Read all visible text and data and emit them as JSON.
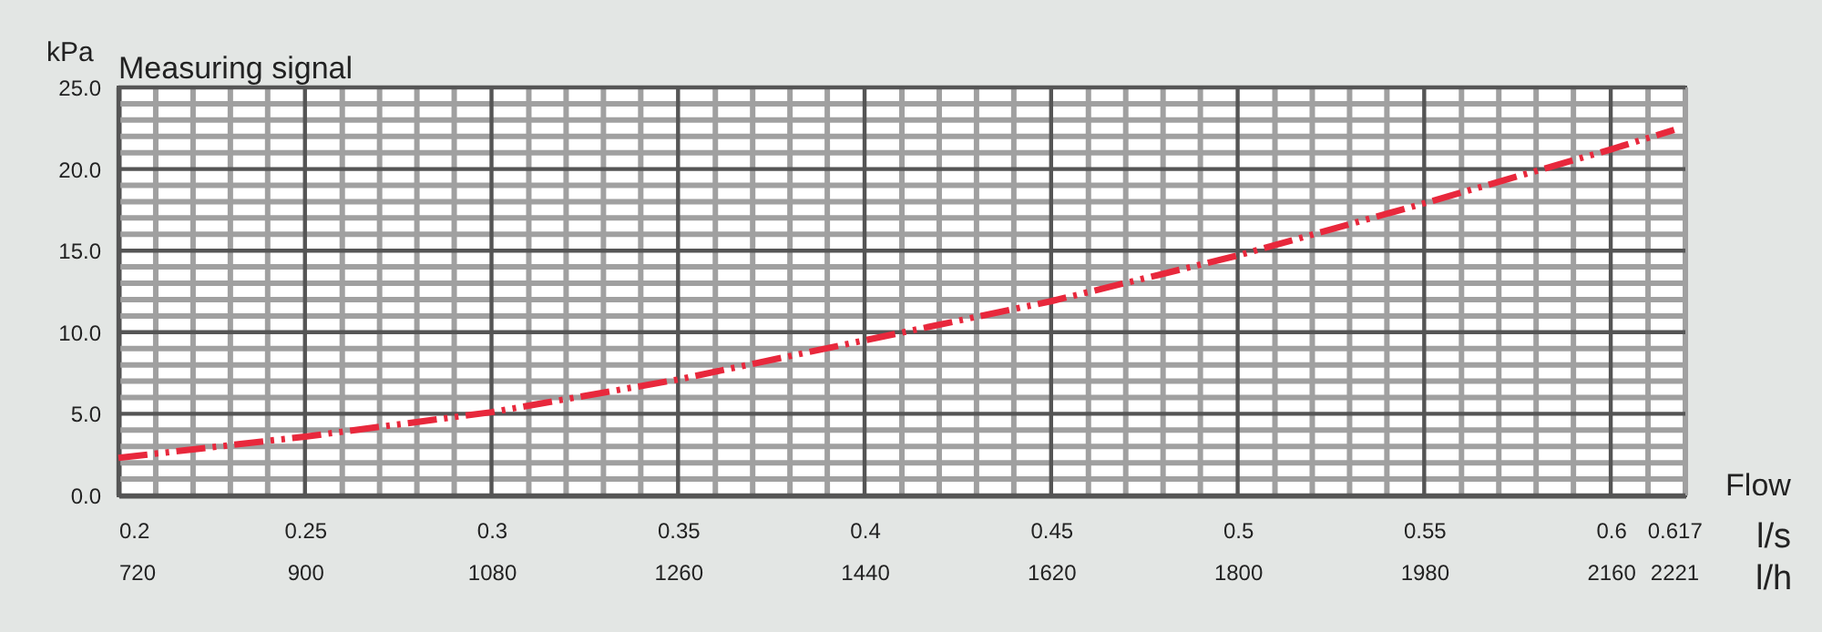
{
  "chart_data": {
    "type": "line",
    "title": "Measuring signal",
    "ylabel": "kPa",
    "xlabel": "l/s",
    "x2label": "l/h",
    "annotations": [
      "Flow"
    ],
    "x": [
      0.2,
      0.25,
      0.3,
      0.35,
      0.4,
      0.45,
      0.5,
      0.55,
      0.6,
      0.617
    ],
    "series": [
      {
        "color": "#e8283c",
        "values": [
          2.3,
          3.6,
          5.1,
          7.1,
          9.5,
          11.9,
          14.7,
          17.9,
          21.2,
          22.4
        ],
        "line_style": "dashed"
      }
    ],
    "xlim": [
      0.2,
      0.62
    ],
    "xticks": [
      0.2,
      0.25,
      0.3,
      0.35,
      0.4,
      0.45,
      0.5,
      0.55,
      0.6,
      0.617
    ],
    "x2lim": [
      720,
      2232
    ],
    "x2ticks": [
      720,
      900,
      1080,
      1260,
      1440,
      1620,
      1800,
      1980,
      2160,
      2221
    ],
    "ylim": [
      0,
      25
    ],
    "yticks": [
      {
        "value": 0,
        "label": "0.0"
      },
      {
        "value": 5,
        "label": "5.0"
      },
      {
        "value": 10,
        "label": "10.0"
      },
      {
        "value": 15,
        "label": "15.0"
      },
      {
        "value": 20,
        "label": "20.0"
      },
      {
        "value": 25,
        "label": "25.0"
      }
    ],
    "grid": true,
    "marker": "none"
  }
}
